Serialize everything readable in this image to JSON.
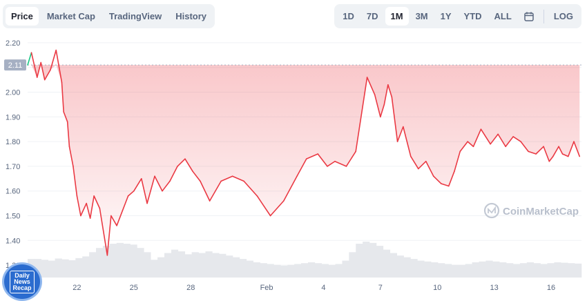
{
  "tabs": [
    {
      "label": "Price",
      "active": true
    },
    {
      "label": "Market Cap",
      "active": false
    },
    {
      "label": "TradingView",
      "active": false
    },
    {
      "label": "History",
      "active": false
    }
  ],
  "ranges": [
    {
      "label": "1D",
      "active": false
    },
    {
      "label": "7D",
      "active": false
    },
    {
      "label": "1M",
      "active": true
    },
    {
      "label": "3M",
      "active": false
    },
    {
      "label": "1Y",
      "active": false
    },
    {
      "label": "YTD",
      "active": false
    },
    {
      "label": "ALL",
      "active": false
    }
  ],
  "calendar_icon": "calendar-icon",
  "log_label": "LOG",
  "watermark": "CoinMarketCap",
  "logo_text": [
    "Daily",
    "News",
    "Recap"
  ],
  "colors": {
    "up": "#16c784",
    "down": "#ea3943",
    "volume": "#e6e8ec",
    "grid": "#eff2f5",
    "label": "#58667e"
  },
  "chart_data": {
    "type": "line",
    "title": "",
    "xlabel": "",
    "ylabel": "",
    "reference_value": 2.11,
    "reference_label": "2.11",
    "ylim": [
      1.25,
      2.25
    ],
    "yticks": [
      1.3,
      1.4,
      1.5,
      1.6,
      1.7,
      1.8,
      1.9,
      2.0,
      2.1,
      2.2
    ],
    "ytick_labels": [
      "1.30",
      "1.40",
      "1.50",
      "1.60",
      "1.70",
      "1.80",
      "1.90",
      "2.00",
      "2.10",
      "2.20"
    ],
    "xlim": [
      19.4,
      48.6
    ],
    "xticks": [
      {
        "x": 22,
        "label": "22"
      },
      {
        "x": 25,
        "label": "25"
      },
      {
        "x": 28,
        "label": "28"
      },
      {
        "x": 32,
        "label": "Feb"
      },
      {
        "x": 35,
        "label": "4"
      },
      {
        "x": 38,
        "label": "7"
      },
      {
        "x": 41,
        "label": "10"
      },
      {
        "x": 44,
        "label": "13"
      },
      {
        "x": 47,
        "label": "16"
      }
    ],
    "series": [
      {
        "x": [
          19.4,
          19.6,
          19.9,
          20.1,
          20.3,
          20.6,
          20.9,
          21.2,
          21.3,
          21.5,
          21.6,
          21.8,
          22.0,
          22.2,
          22.5,
          22.7,
          22.9,
          23.2,
          23.6,
          23.8,
          24.1,
          24.4,
          24.7,
          25.0,
          25.4,
          25.7,
          26.1,
          26.5,
          26.9,
          27.3,
          27.7,
          28.1,
          28.5,
          29.0,
          29.6,
          30.2,
          30.8,
          31.5,
          32.2,
          32.9,
          33.6,
          34.1,
          34.7,
          35.2,
          35.6,
          36.2,
          36.7,
          37.3,
          37.7,
          38.0,
          38.2,
          38.4,
          38.6,
          38.9,
          39.2,
          39.6,
          40.0,
          40.4,
          40.8,
          41.2,
          41.6,
          41.9,
          42.2,
          42.6,
          42.9,
          43.3,
          43.8,
          44.2,
          44.6,
          45.0,
          45.4,
          45.8,
          46.2,
          46.6,
          46.9,
          47.1,
          47.4,
          47.6,
          47.9,
          48.2,
          48.5
        ],
        "y": [
          2.11,
          2.16,
          2.06,
          2.12,
          2.05,
          2.09,
          2.17,
          2.04,
          1.92,
          1.88,
          1.78,
          1.7,
          1.58,
          1.5,
          1.55,
          1.49,
          1.58,
          1.53,
          1.34,
          1.5,
          1.46,
          1.52,
          1.58,
          1.6,
          1.65,
          1.55,
          1.66,
          1.6,
          1.64,
          1.7,
          1.73,
          1.68,
          1.64,
          1.56,
          1.64,
          1.66,
          1.64,
          1.58,
          1.5,
          1.56,
          1.66,
          1.73,
          1.75,
          1.7,
          1.72,
          1.7,
          1.76,
          2.06,
          1.99,
          1.9,
          1.95,
          2.03,
          1.98,
          1.8,
          1.86,
          1.74,
          1.69,
          1.72,
          1.66,
          1.63,
          1.62,
          1.68,
          1.76,
          1.8,
          1.78,
          1.85,
          1.79,
          1.83,
          1.78,
          1.82,
          1.8,
          1.76,
          1.75,
          1.78,
          1.72,
          1.74,
          1.78,
          1.75,
          1.74,
          1.8,
          1.74
        ]
      }
    ],
    "volume": [
      44,
      44,
      42,
      40,
      45,
      43,
      41,
      46,
      50,
      60,
      70,
      75,
      80,
      82,
      80,
      78,
      70,
      60,
      42,
      48,
      58,
      66,
      62,
      55,
      60,
      58,
      62,
      58,
      56,
      52,
      48,
      44,
      40,
      36,
      34,
      32,
      30,
      28,
      30,
      32,
      34,
      36,
      34,
      32,
      30,
      32,
      40,
      60,
      80,
      85,
      82,
      75,
      66,
      58,
      52,
      48,
      44,
      40,
      38,
      36,
      34,
      32,
      30,
      30,
      32,
      36,
      38,
      40,
      38,
      36,
      34,
      32,
      34,
      36,
      34,
      32,
      34,
      36,
      35,
      34,
      33
    ]
  }
}
